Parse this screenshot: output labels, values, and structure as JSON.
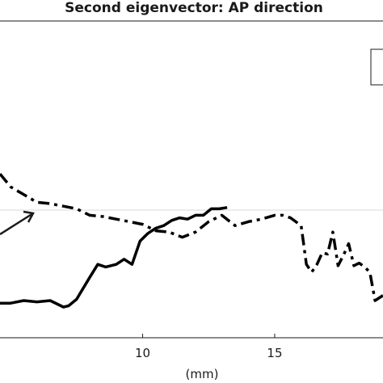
{
  "chart_data": {
    "type": "line",
    "title": "Second eigenvector: AP direction",
    "xlabel": "(mm)",
    "ylabel": "",
    "xlim": [
      4.6,
      19.1
    ],
    "ylim": [
      -1.0,
      1.0
    ],
    "x_ticks": [
      10,
      15
    ],
    "grid": false,
    "legend": "top-right",
    "reference_line_y": 0.0,
    "series": [
      {
        "style": "solid",
        "x": [
          4.6,
          5.0,
          5.5,
          6.0,
          6.5,
          7.0,
          7.2,
          7.5,
          8.0,
          8.3,
          8.6,
          9.0,
          9.3,
          9.6,
          9.9,
          10.2,
          10.5,
          10.8,
          11.1,
          11.4,
          11.7,
          12.0,
          12.3,
          12.6,
          12.9,
          13.2
        ],
        "y": [
          -0.72,
          -0.72,
          -0.7,
          -0.71,
          -0.7,
          -0.75,
          -0.74,
          -0.69,
          -0.52,
          -0.42,
          -0.44,
          -0.42,
          -0.38,
          -0.42,
          -0.24,
          -0.18,
          -0.14,
          -0.12,
          -0.08,
          -0.06,
          -0.07,
          -0.04,
          -0.04,
          0.01,
          0.01,
          0.02
        ]
      },
      {
        "style": "dash-dot",
        "x": [
          4.6,
          5.0,
          5.5,
          6.0,
          6.5,
          7.0,
          7.5,
          8.0,
          8.5,
          9.0,
          9.5,
          10.0,
          10.5,
          11.0,
          11.5,
          12.0,
          12.5,
          13.0,
          13.5,
          14.0,
          14.5,
          15.0,
          15.3,
          15.6,
          16.0,
          16.2,
          16.4,
          16.6,
          16.8,
          17.0,
          17.2,
          17.4,
          17.6,
          17.8,
          18.0,
          18.2,
          18.4,
          18.6,
          18.8,
          19.1
        ],
        "y": [
          0.28,
          0.18,
          0.12,
          0.06,
          0.05,
          0.03,
          0.01,
          -0.04,
          -0.05,
          -0.07,
          -0.09,
          -0.11,
          -0.16,
          -0.17,
          -0.21,
          -0.17,
          -0.09,
          -0.04,
          -0.12,
          -0.09,
          -0.07,
          -0.04,
          -0.04,
          -0.06,
          -0.12,
          -0.42,
          -0.48,
          -0.42,
          -0.33,
          -0.34,
          -0.17,
          -0.43,
          -0.35,
          -0.26,
          -0.43,
          -0.41,
          -0.44,
          -0.48,
          -0.7,
          -0.66
        ]
      }
    ]
  }
}
